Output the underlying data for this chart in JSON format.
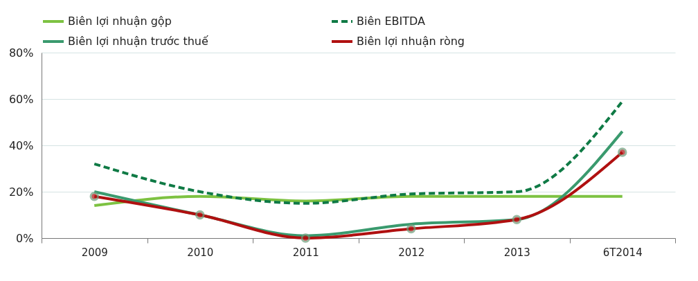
{
  "chart_data": {
    "type": "line",
    "categories": [
      "2009",
      "2010",
      "2011",
      "2012",
      "2013",
      "6T2014"
    ],
    "series": [
      {
        "name": "Biên lợi nhuận gộp",
        "color": "#7dc242",
        "line_style": "solid",
        "values": [
          14,
          18,
          16,
          18,
          18,
          18
        ]
      },
      {
        "name": "Biên EBITDA",
        "color": "#0f7a45",
        "line_style": "dashed",
        "values": [
          32,
          20,
          15,
          19,
          20,
          59
        ]
      },
      {
        "name": "Biên lợi nhuận trước thuế",
        "color": "#3a9a6e",
        "line_style": "solid",
        "values": [
          20,
          10,
          1,
          6,
          8,
          46
        ]
      },
      {
        "name": "Biên lợi nhuận ròng",
        "color": "#b01010",
        "line_style": "solid",
        "marker": "circle",
        "values": [
          18,
          10,
          0,
          4,
          8,
          37
        ]
      }
    ],
    "ylim": [
      0,
      80
    ],
    "yticks": [
      {
        "value": 0,
        "label": "0%"
      },
      {
        "value": 20,
        "label": "20%"
      },
      {
        "value": 40,
        "label": "40%"
      },
      {
        "value": 60,
        "label": "60%"
      },
      {
        "value": 80,
        "label": "80%"
      }
    ],
    "grid": "y",
    "legend": "top"
  }
}
